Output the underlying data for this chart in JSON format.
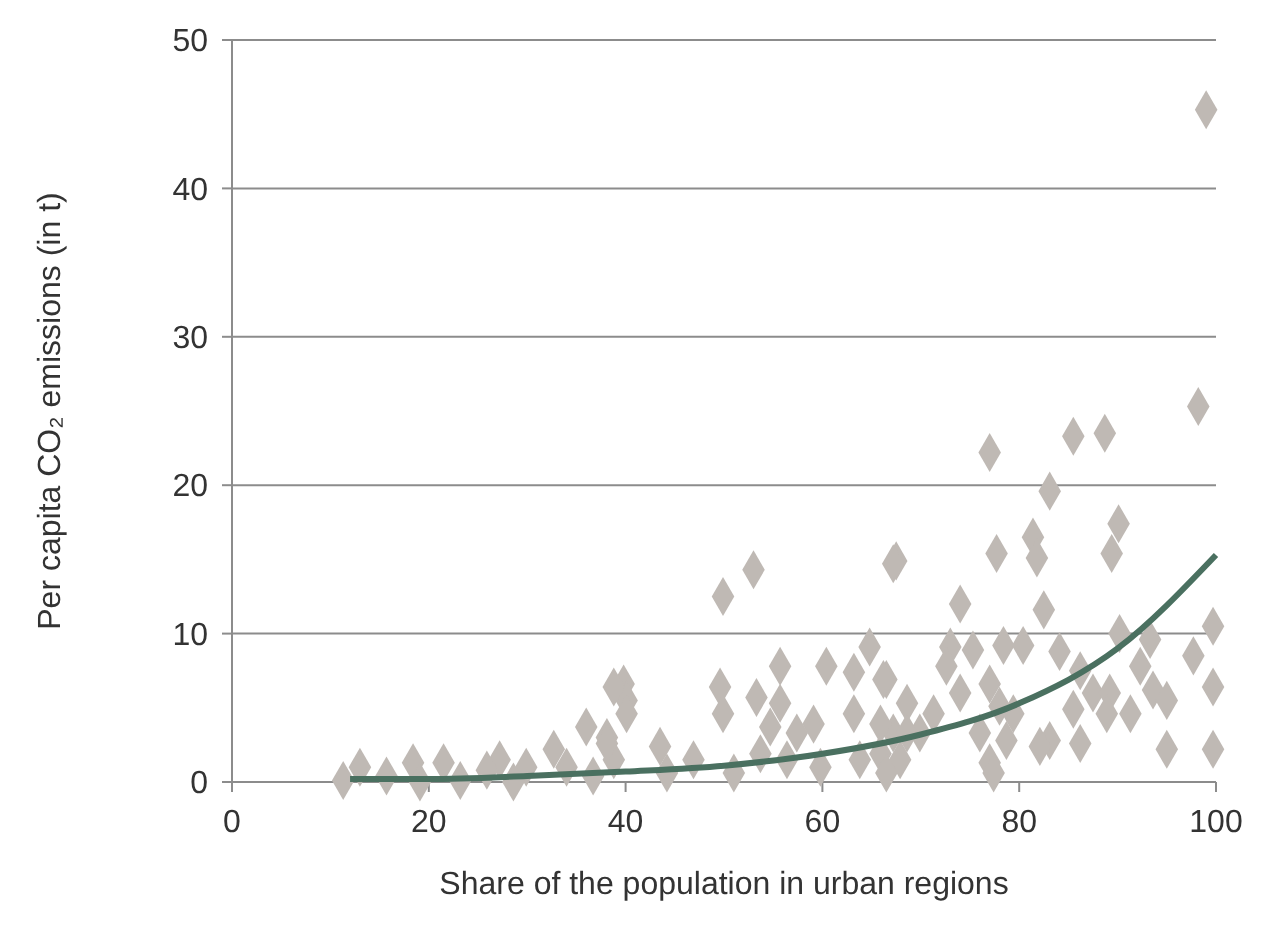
{
  "chart_data": {
    "type": "scatter",
    "xlabel": "Share of the population in urban regions",
    "ylabel": "Per capita CO₂ emissions (in t)",
    "xlim": [
      0,
      100
    ],
    "xticks": [
      0,
      20,
      40,
      60,
      80,
      100
    ],
    "ylim": [
      0,
      50
    ],
    "yticks": [
      0,
      10,
      20,
      30,
      40,
      50
    ],
    "grid": "y",
    "series": [
      {
        "marker": "diamond",
        "color": "#bfb9b4",
        "x": [
          99,
          98.2,
          85.5,
          88.7,
          77.0,
          83.1,
          90.1,
          89.4,
          81.4,
          81.8,
          77.7,
          67.5,
          74.0,
          82.5,
          99.7,
          73.0,
          75.3,
          78.4,
          80.4,
          84.1,
          90.2,
          93.3,
          97.7,
          92.3,
          72.6,
          86.2,
          74.0,
          77.0,
          87.5,
          89.2,
          93.6,
          95.0,
          99.7,
          66.5,
          68.6,
          71.3,
          78.0,
          79.4,
          85.5,
          88.9,
          91.3,
          67.2,
          69.9,
          76.0,
          78.7,
          83.1,
          86.2,
          95.0,
          99.7,
          77.0,
          77.4,
          65.9,
          67.9,
          82.1,
          53.0,
          49.9,
          67.2,
          55.7,
          60.4,
          63.2,
          64.8,
          39.8,
          40.1,
          40.1,
          49.6,
          49.9,
          53.3,
          55.7,
          54.7,
          59.1,
          57.4,
          63.2,
          66.2,
          65.9,
          38.1,
          43.5,
          46.9,
          51.0,
          53.7,
          56.4,
          59.8,
          63.8,
          68.6,
          38.8,
          44.2,
          66.5,
          13.0,
          11.3,
          15.7,
          18.4,
          21.5,
          19.1,
          27.2,
          25.9,
          29.9,
          32.7,
          36.0,
          38.1,
          38.8,
          34.0,
          36.7,
          23.2,
          28.6
        ],
        "values": [
          45.3,
          25.3,
          23.3,
          23.5,
          22.2,
          19.6,
          17.4,
          15.4,
          16.5,
          15.1,
          15.4,
          14.9,
          12.0,
          11.6,
          10.5,
          9.1,
          8.9,
          9.2,
          9.2,
          8.8,
          10.0,
          9.6,
          8.5,
          7.8,
          7.8,
          7.5,
          6.0,
          6.6,
          6.0,
          6.0,
          6.2,
          5.5,
          6.4,
          6.9,
          5.3,
          4.6,
          5.1,
          4.6,
          4.9,
          4.6,
          4.6,
          3.3,
          3.3,
          3.3,
          2.8,
          2.8,
          2.6,
          2.2,
          2.2,
          1.3,
          0.6,
          1.9,
          1.5,
          2.4,
          14.3,
          12.5,
          14.7,
          7.8,
          7.8,
          7.4,
          9.1,
          6.6,
          5.5,
          4.6,
          6.4,
          4.6,
          5.7,
          5.3,
          3.7,
          3.9,
          3.3,
          4.6,
          6.9,
          3.9,
          3.0,
          2.4,
          1.5,
          0.6,
          1.9,
          1.5,
          1.0,
          1.5,
          3.3,
          1.5,
          0.6,
          0.6,
          1.0,
          0.1,
          0.4,
          1.3,
          1.3,
          0,
          1.5,
          0.8,
          1.0,
          2.2,
          3.7,
          2.6,
          6.4,
          1.0,
          0.4,
          0.1,
          0
        ]
      },
      {
        "type": "line",
        "color": "#4a7060",
        "x": [
          12,
          20,
          30,
          40,
          50,
          60,
          70,
          80,
          90,
          100
        ],
        "values": [
          0.2,
          0.2,
          0.4,
          0.7,
          1.1,
          1.9,
          3.2,
          5.3,
          9.0,
          15.3
        ]
      }
    ]
  }
}
